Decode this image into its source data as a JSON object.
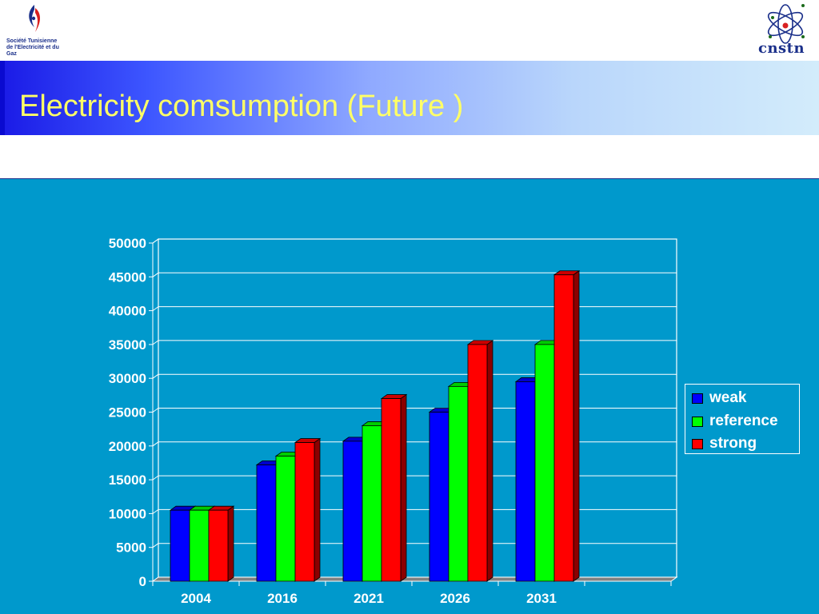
{
  "header": {
    "left_logo_text": "Société Tunisienne de l'Electricité et du Gaz",
    "right_logo_text": "cnstn",
    "title": "Electricity comsumption (Future )"
  },
  "chart_data": {
    "type": "bar",
    "categories": [
      "2004",
      "2016",
      "2021",
      "2026",
      "2031"
    ],
    "series": [
      {
        "name": "weak",
        "color": "#0000ff",
        "values": [
          10500,
          17200,
          20700,
          25000,
          29500
        ]
      },
      {
        "name": "reference",
        "color": "#00ff00",
        "values": [
          10500,
          18500,
          23000,
          28800,
          35000
        ]
      },
      {
        "name": "strong",
        "color": "#ff0000",
        "values": [
          10500,
          20500,
          27000,
          35000,
          45300
        ]
      }
    ],
    "ylim": [
      0,
      50000
    ],
    "yticks": [
      "0",
      "5000",
      "10000",
      "15000",
      "20000",
      "25000",
      "30000",
      "35000",
      "40000",
      "45000",
      "50000"
    ],
    "grid": true,
    "legend_position": "right",
    "title": "",
    "xlabel": "",
    "ylabel": ""
  }
}
